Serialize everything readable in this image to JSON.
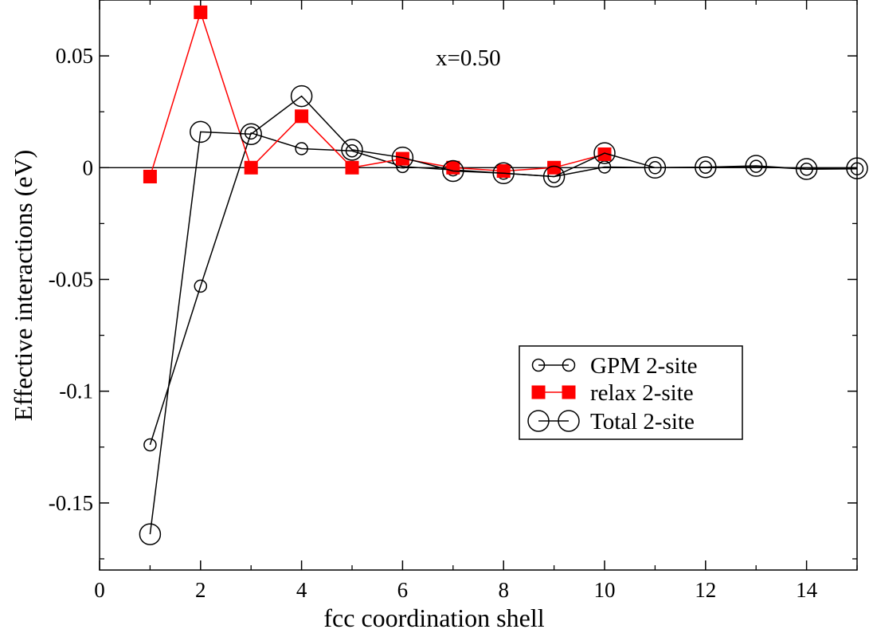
{
  "chart_data": {
    "type": "line",
    "title": "",
    "annotation": "x=0.50",
    "xlabel": "fcc coordination shell",
    "ylabel": "Effective interactions (eV)",
    "xlim": [
      0,
      15
    ],
    "ylim": [
      -0.18,
      0.075
    ],
    "xticks": [
      0,
      2,
      4,
      6,
      8,
      10,
      12,
      14
    ],
    "xtick_labels": [
      "0",
      "2",
      "4",
      "6",
      "8",
      "10",
      "12",
      "14"
    ],
    "yticks": [
      -0.15,
      -0.1,
      -0.05,
      0,
      0.05
    ],
    "ytick_labels": [
      "-0.15",
      "-0.1",
      "-0.05",
      "0",
      "0.05"
    ],
    "zero_line": true,
    "grid": false,
    "legend_position": "lower-right",
    "series": [
      {
        "name": "GPM 2-site",
        "color": "#000000",
        "marker": "small-open-circle",
        "x": [
          1,
          2,
          3,
          4,
          5,
          6,
          7,
          8,
          9,
          10,
          11,
          12,
          13,
          14,
          15
        ],
        "y": [
          -0.124,
          -0.053,
          0.0155,
          0.0085,
          0.0075,
          0.0005,
          -0.001,
          -0.0025,
          -0.004,
          0.0003,
          0.0,
          0.0002,
          0.0006,
          -0.0007,
          -0.0005
        ]
      },
      {
        "name": "relax 2-site",
        "color": "#ff0000",
        "marker": "filled-square",
        "x": [
          1,
          2,
          3,
          4,
          5,
          6,
          7,
          8,
          9,
          10
        ],
        "y": [
          -0.004,
          0.0695,
          0.0,
          0.023,
          0.0,
          0.004,
          0.0,
          -0.0015,
          0.0,
          0.006
        ]
      },
      {
        "name": "Total 2-site",
        "color": "#000000",
        "marker": "large-open-circle",
        "x": [
          1,
          2,
          3,
          4,
          5,
          6,
          7,
          8,
          9,
          10,
          11,
          12,
          13,
          14,
          15
        ],
        "y": [
          -0.164,
          0.016,
          0.015,
          0.032,
          0.008,
          0.0045,
          -0.0015,
          -0.0025,
          -0.004,
          0.0065,
          0.0,
          0.0002,
          0.0008,
          -0.0006,
          -0.0003
        ]
      }
    ]
  }
}
